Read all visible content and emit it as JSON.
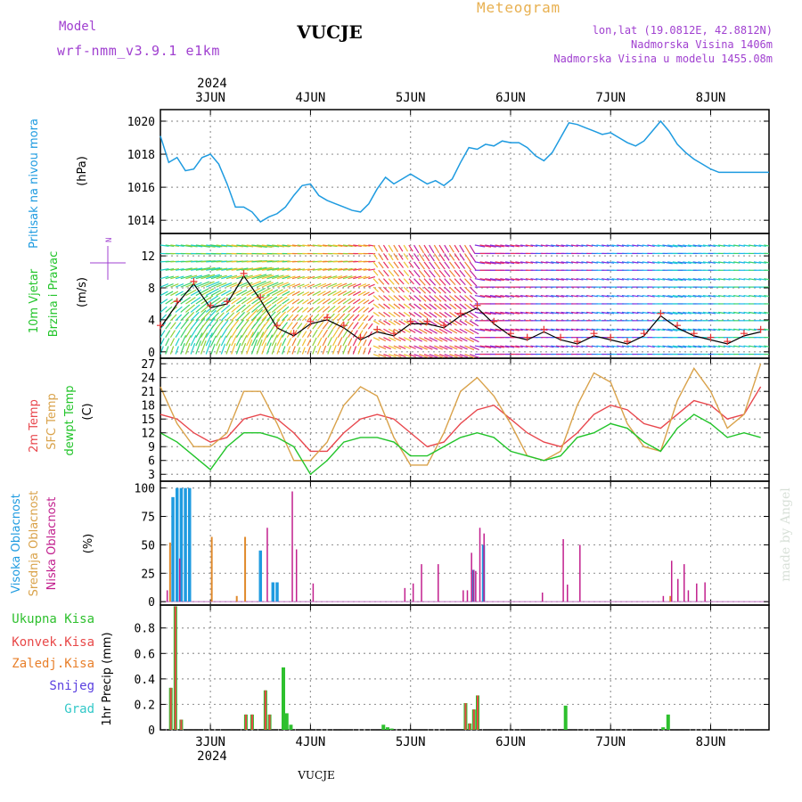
{
  "header": {
    "model_label": "Model",
    "model_name": "wrf-nmm_v3.9.1 e1km",
    "station": "VUCJE",
    "title": "Meteogram",
    "coords": "lon,lat (19.0812E, 42.8812N)",
    "elevation": "Nadmorska Visina 1406m",
    "model_elevation": "Nadmorska Visina u modelu 1455.08m",
    "watermark": "made by Angel",
    "footer_station": "VUCJE"
  },
  "colors": {
    "pressure": "#1e9be0",
    "temp2m": "#e8474d",
    "sfc_temp": "#d9a24a",
    "dewpt": "#22c42a",
    "high_cloud": "#1e9be0",
    "mid_cloud": "#e08a2c",
    "low_cloud": "#c2208e",
    "total_precip": "#2ec02e",
    "conv_precip": "#e84848",
    "freezing_precip": "#e87f2a",
    "snow": "#5a3fe0",
    "hail": "#32c8c8",
    "title_purple": "#a040d0",
    "title_orange": "#e8b050"
  },
  "time_axis": {
    "year": "2024",
    "days": [
      "3JUN",
      "4JUN",
      "5JUN",
      "6JUN",
      "7JUN",
      "8JUN"
    ]
  },
  "chart_data": [
    {
      "type": "line",
      "id": "pressure",
      "ylabel": "Pritisak na nivou mora",
      "unit": "(hPa)",
      "ylim": [
        1013.2,
        1020.7
      ],
      "yticks": [
        1014,
        1016,
        1018,
        1020
      ],
      "x_hours": [
        0,
        2,
        4,
        6,
        8,
        10,
        12,
        14,
        16,
        18,
        20,
        22,
        24,
        26,
        28,
        30,
        32,
        34,
        36,
        38,
        40,
        42,
        44,
        46,
        48,
        50,
        52,
        54,
        56,
        58,
        60,
        62,
        64,
        66,
        68,
        70,
        72,
        74,
        76,
        78,
        80,
        82,
        84,
        86,
        88,
        90,
        92,
        94,
        96,
        98,
        100,
        102,
        104,
        106,
        108,
        110,
        112,
        114,
        116,
        118,
        120,
        122,
        124,
        126,
        128,
        130,
        132,
        134,
        136,
        138,
        140,
        142,
        144,
        146
      ],
      "series": [
        {
          "values": [
            1019.1,
            1017.5,
            1017.8,
            1017.0,
            1017.1,
            1017.8,
            1018.0,
            1017.4,
            1016.2,
            1014.8,
            1014.8,
            1014.5,
            1013.9,
            1014.2,
            1014.4,
            1014.8,
            1015.5,
            1016.1,
            1016.2,
            1015.5,
            1015.2,
            1015.0,
            1014.8,
            1014.6,
            1014.5,
            1015.0,
            1015.9,
            1016.6,
            1016.2,
            1016.5,
            1016.8,
            1016.5,
            1016.2,
            1016.4,
            1016.1,
            1016.5,
            1017.5,
            1018.4,
            1018.3,
            1018.6,
            1018.5,
            1018.8,
            1018.7,
            1018.7,
            1018.4,
            1017.9,
            1017.6,
            1018.1,
            1019.0,
            1019.9,
            1019.8,
            1019.6,
            1019.4,
            1019.2,
            1019.3,
            1019.0,
            1018.7,
            1018.5,
            1018.8,
            1019.4,
            1020.0,
            1019.4,
            1018.6,
            1018.1,
            1017.7,
            1017.4,
            1017.1,
            1016.9,
            1016.9,
            1016.9,
            1016.9,
            1016.9,
            1016.9,
            1016.9
          ]
        }
      ]
    },
    {
      "type": "line",
      "id": "wind",
      "ylabel": "10m Vjetar",
      "ylabel2": "Brzina i Pravac",
      "unit": "(m/s)",
      "compass": "N",
      "ylim": [
        -0.8,
        14.8
      ],
      "yticks": [
        0,
        4,
        8,
        12
      ],
      "x_hours": [
        0,
        4,
        8,
        12,
        16,
        20,
        24,
        28,
        32,
        36,
        40,
        44,
        48,
        52,
        56,
        60,
        64,
        68,
        72,
        76,
        80,
        84,
        88,
        92,
        96,
        100,
        104,
        108,
        112,
        116,
        120,
        124,
        128,
        132,
        136,
        140,
        144
      ],
      "series": [
        {
          "name": "speed",
          "values": [
            3.0,
            6.0,
            8.5,
            5.5,
            6.0,
            9.5,
            6.5,
            3.0,
            2.0,
            3.5,
            4.0,
            3.0,
            1.5,
            2.5,
            2.0,
            3.5,
            3.5,
            3.0,
            4.5,
            5.5,
            3.5,
            2.0,
            1.5,
            2.5,
            1.5,
            1.0,
            2.0,
            1.5,
            1.0,
            2.0,
            4.5,
            3.0,
            2.0,
            1.5,
            1.0,
            2.0,
            2.5
          ]
        }
      ]
    },
    {
      "type": "line",
      "id": "temperature",
      "ylabel": "2m Temp",
      "ylabel2": "SFC Temp",
      "ylabel3": "dewpt Temp",
      "unit": "(C)",
      "ylim": [
        1.5,
        28.2
      ],
      "yticks": [
        3,
        6,
        9,
        12,
        15,
        18,
        21,
        24,
        27
      ],
      "x_hours": [
        0,
        4,
        8,
        12,
        16,
        20,
        24,
        28,
        32,
        36,
        40,
        44,
        48,
        52,
        56,
        60,
        64,
        68,
        72,
        76,
        80,
        84,
        88,
        92,
        96,
        100,
        104,
        108,
        112,
        116,
        120,
        124,
        128,
        132,
        136,
        140,
        144
      ],
      "series": [
        {
          "name": "2m Temp",
          "values": [
            16,
            15,
            12,
            10,
            11,
            15,
            16,
            15,
            12,
            8,
            8,
            12,
            15,
            16,
            15,
            12,
            9,
            10,
            14,
            17,
            18,
            15,
            12,
            10,
            9,
            12,
            16,
            18,
            17,
            14,
            13,
            16,
            19,
            18,
            15,
            16,
            22
          ]
        },
        {
          "name": "SFC Temp",
          "values": [
            22,
            14,
            9,
            9,
            12,
            21,
            21,
            14,
            6,
            6,
            10,
            18,
            22,
            20,
            11,
            5,
            5,
            12,
            21,
            24,
            20,
            14,
            7,
            6,
            8,
            18,
            25,
            23,
            14,
            9,
            8,
            19,
            26,
            21,
            13,
            16,
            27
          ]
        },
        {
          "name": "dewpt Temp",
          "values": [
            12,
            10,
            7,
            4,
            9,
            12,
            12,
            11,
            9,
            3,
            6,
            10,
            11,
            11,
            10,
            7,
            7,
            9,
            11,
            12,
            11,
            8,
            7,
            6,
            7,
            11,
            12,
            14,
            13,
            10,
            8,
            13,
            16,
            14,
            11,
            12,
            11
          ]
        }
      ]
    },
    {
      "type": "bar",
      "id": "clouds",
      "ylabel": "Visoka Oblacnost",
      "ylabel2": "Srednja Oblacnost",
      "ylabel3": "Niska Oblacnost",
      "unit": "(%)",
      "ylim": [
        -3,
        106
      ],
      "yticks": [
        0,
        25,
        50,
        75,
        100
      ],
      "x_hours": [
        1.0,
        2.0,
        3.0,
        4.0,
        5.0,
        6.0,
        7.0,
        8.0,
        10.0,
        12.0,
        14.0,
        18.0,
        20.0,
        24.0,
        25.0,
        27.0,
        28.0,
        29.0,
        31.0,
        32.0,
        34.0,
        36.0,
        58.0,
        60.0,
        62.0,
        66.0,
        72.0,
        73.0,
        74.0,
        74.5,
        75.0,
        76.0,
        77.0,
        77.5,
        78.0,
        79.0,
        80.0,
        91.0,
        96.0,
        97.0,
        100.0,
        120.0,
        122.0,
        123.5,
        125.0,
        126.0,
        128.0,
        130.0
      ],
      "series": [
        {
          "name": "Visoka Oblacnost",
          "values": [
            0,
            0,
            92,
            100,
            100,
            100,
            100,
            0,
            0,
            0,
            0,
            0,
            0,
            45,
            0,
            17,
            17,
            0,
            0,
            0,
            0,
            0,
            0,
            0,
            0,
            0,
            0,
            0,
            0,
            0,
            28,
            0,
            0,
            50,
            0,
            0,
            0,
            0,
            0,
            0,
            0,
            0,
            0,
            0,
            0,
            0,
            0,
            0
          ]
        },
        {
          "name": "Srednja Oblacnost",
          "values": [
            0,
            52,
            0,
            0,
            0,
            0,
            0,
            0,
            0,
            57,
            0,
            5,
            57,
            0,
            0,
            0,
            0,
            0,
            0,
            0,
            0,
            0,
            0,
            0,
            0,
            0,
            0,
            0,
            0,
            0,
            0,
            0,
            0,
            0,
            0,
            0,
            0,
            0,
            0,
            0,
            0,
            0,
            5,
            0,
            0,
            0,
            0,
            0
          ]
        },
        {
          "name": "Niska Oblacnost",
          "values": [
            10,
            0,
            0,
            38,
            0,
            0,
            0,
            0,
            0,
            0,
            0,
            0,
            0,
            0,
            65,
            0,
            0,
            0,
            97,
            46,
            0,
            16,
            12,
            16,
            33,
            33,
            10,
            10,
            43,
            28,
            27,
            65,
            60,
            0,
            0,
            0,
            0,
            8,
            55,
            15,
            50,
            5,
            36,
            20,
            33,
            10,
            16,
            17
          ]
        }
      ]
    },
    {
      "type": "bar",
      "id": "precip",
      "ylabel": "1hr Precip (mm)",
      "ylabel_total": "Ukupna Kisa",
      "ylabel_conv": "Konvek.Kisa",
      "ylabel_freezing": "Zaledj.Kisa",
      "ylabel_snow": "Snijeg",
      "ylabel_hail": "Grad",
      "ylim": [
        0,
        0.98
      ],
      "yticks": [
        0,
        0.2,
        0.4,
        0.6,
        0.8
      ],
      "x_hours": [
        2.5,
        3.6,
        5.0,
        20.5,
        22.0,
        25.2,
        26.2,
        29.5,
        30.3,
        31.3,
        53.5,
        54.5,
        55.5,
        73.2,
        74.2,
        75.2,
        76.1,
        97.2,
        120.6,
        121.8
      ],
      "series": [
        {
          "name": "Ukupna Kisa",
          "values": [
            0.33,
            0.97,
            0.08,
            0.12,
            0.12,
            0.31,
            0.12,
            0.49,
            0.13,
            0.04,
            0.04,
            0.02,
            0.01,
            0.21,
            0.05,
            0.16,
            0.27,
            0.19,
            0.02,
            0.12
          ]
        },
        {
          "name": "Konvek.Kisa",
          "values": [
            0.33,
            0.97,
            0.08,
            0.12,
            0.12,
            0.31,
            0.12,
            0.0,
            0.0,
            0.0,
            0.0,
            0.0,
            0.0,
            0.21,
            0.05,
            0.16,
            0.27,
            0.0,
            0.0,
            0.0
          ]
        }
      ]
    }
  ]
}
